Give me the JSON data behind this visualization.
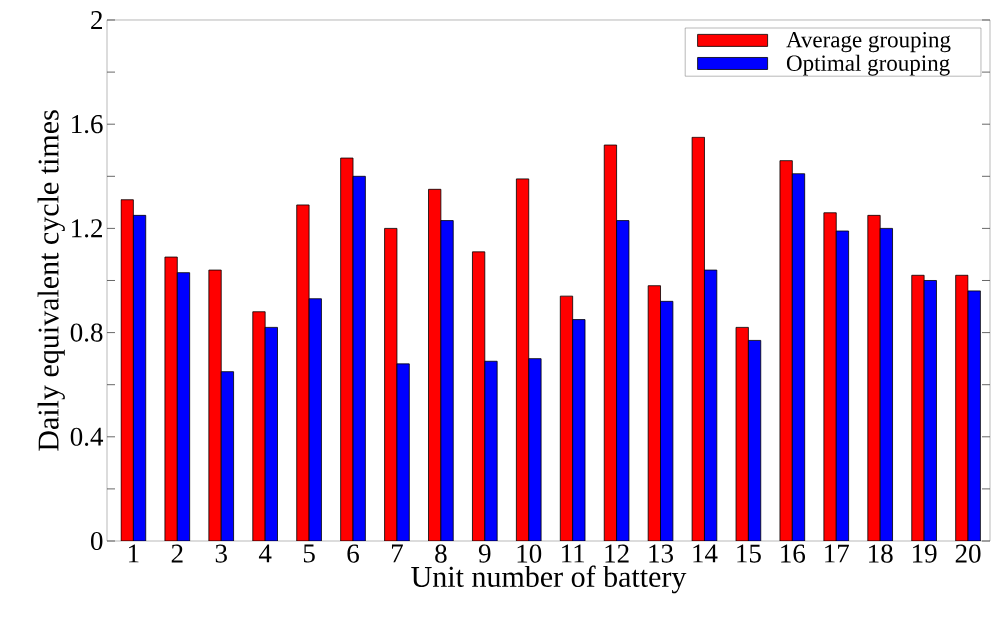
{
  "chart_data": {
    "type": "bar",
    "xlabel": "Unit number of battery",
    "ylabel": "Daily equivalent  cycle times",
    "categories": [
      "1",
      "2",
      "3",
      "4",
      "5",
      "6",
      "7",
      "8",
      "9",
      "10",
      "11",
      "12",
      "13",
      "14",
      "15",
      "16",
      "17",
      "18",
      "19",
      "20"
    ],
    "series": [
      {
        "name": "Average grouping",
        "color": "#ff0000",
        "values": [
          1.31,
          1.09,
          1.04,
          0.88,
          1.29,
          1.47,
          1.2,
          1.35,
          1.11,
          1.39,
          0.94,
          1.52,
          0.98,
          1.55,
          0.82,
          1.46,
          1.26,
          1.25,
          1.02,
          1.02
        ]
      },
      {
        "name": "Optimal grouping",
        "color": "#0000ff",
        "values": [
          1.25,
          1.03,
          0.65,
          0.82,
          0.93,
          1.4,
          0.68,
          1.23,
          0.69,
          0.7,
          0.85,
          1.23,
          0.92,
          1.04,
          0.77,
          1.41,
          1.19,
          1.2,
          1.0,
          0.96
        ]
      }
    ],
    "ylim": [
      0,
      2
    ],
    "yticks": [
      0,
      {
        "value": 0.2,
        "label": null
      },
      0.4,
      {
        "value": 0.6,
        "label": null
      },
      0.8,
      {
        "value": 1.0,
        "label": null
      },
      1.2,
      {
        "value": 1.4,
        "label": null
      },
      1.6,
      {
        "value": 1.8,
        "label": null
      },
      2
    ],
    "grid": false,
    "legend": "top right"
  }
}
